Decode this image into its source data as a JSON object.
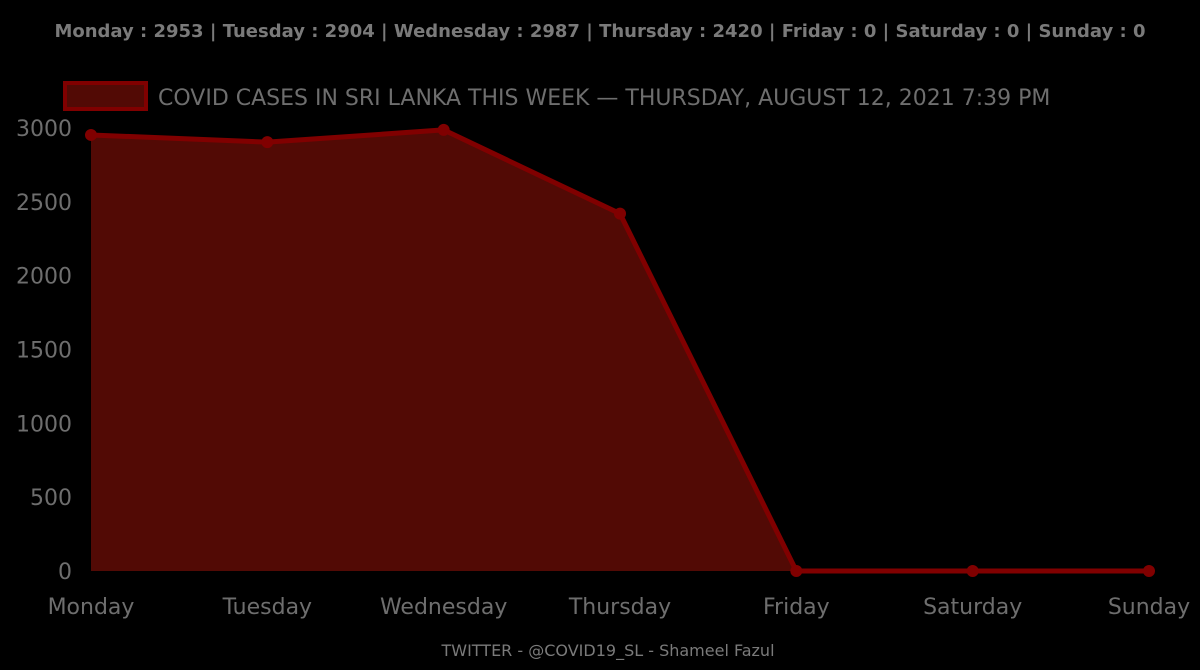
{
  "summary_line": "Monday : 2953 | Tuesday : 2904 | Wednesday : 2987 | Thursday : 2420 | Friday : 0 | Saturday : 0 | Sunday : 0",
  "credit": "TWITTER - @COVID19_SL - Shameel Fazul",
  "colors": {
    "background": "#000000",
    "line": "#800000",
    "fill": "#520a05",
    "text": "#6e6e6e"
  },
  "chart_data": {
    "type": "area",
    "categories": [
      "Monday",
      "Tuesday",
      "Wednesday",
      "Thursday",
      "Friday",
      "Saturday",
      "Sunday"
    ],
    "series": [
      {
        "name": "COVID CASES IN SRI LANKA THIS WEEK — THURSDAY, AUGUST 12, 2021 7:39 PM",
        "values": [
          2953,
          2904,
          2987,
          2420,
          0,
          0,
          0
        ]
      }
    ],
    "y_ticks": [
      0,
      500,
      1000,
      1500,
      2000,
      2500,
      3000
    ],
    "ylim": [
      0,
      3000
    ],
    "grid": false,
    "legend_position": "top"
  }
}
